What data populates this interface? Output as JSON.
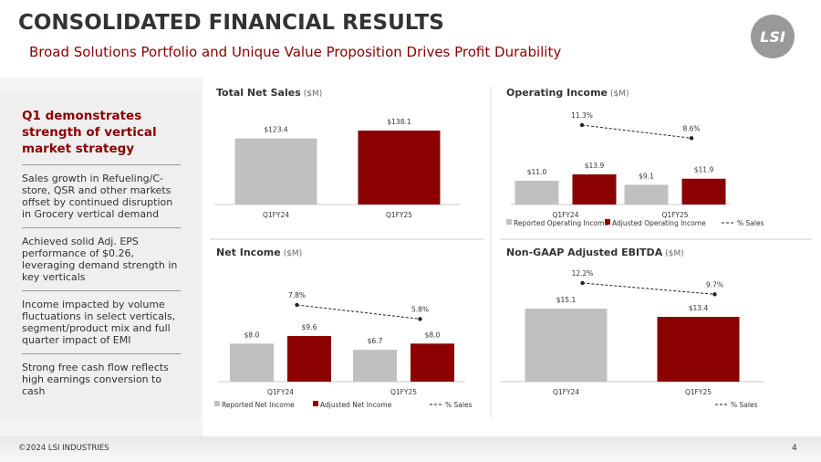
{
  "header": {
    "title": "CONSOLIDATED FINANCIAL RESULTS",
    "subtitle": "Broad Solutions Portfolio and Unique Value Proposition Drives Profit Durability",
    "logo": "LSI"
  },
  "sidebar": {
    "heading": "Q1 demonstrates strength of vertical market strategy",
    "bullets": [
      "Sales growth in Refueling/C-store, QSR and other markets offset by continued disruption in Grocery vertical demand",
      "Achieved solid Adj. EPS performance of $0.26, leveraging demand strength in key verticals",
      "Income impacted by volume fluctuations in select verticals, segment/product mix and full quarter impact of EMI",
      "Strong free cash flow reflects high earnings conversion to cash"
    ]
  },
  "footer": {
    "copyright": "©2024 LSI INDUSTRIES",
    "page": "4"
  },
  "chart_data": [
    {
      "type": "bar",
      "title": "Total Net Sales",
      "unit": "($M)",
      "categories": [
        "Q1FY24",
        "Q1FY25"
      ],
      "series": [
        {
          "colors": [
            "#c0c0c0",
            "#8b0000"
          ],
          "values": [
            123.4,
            138.1
          ],
          "value_labels": [
            "$123.4",
            "$138.1"
          ]
        }
      ]
    },
    {
      "type": "bar",
      "title": "Operating Income",
      "unit": "($M)",
      "categories": [
        "Q1FY24",
        "Q1FY25"
      ],
      "series": [
        {
          "name": "Reported Operating Income",
          "color": "#c0c0c0",
          "values": [
            11.0,
            9.1
          ],
          "value_labels": [
            "$11.0",
            "$9.1"
          ]
        },
        {
          "name": "Adjusted Operating Income",
          "color": "#8b0000",
          "values": [
            13.9,
            11.9
          ],
          "value_labels": [
            "$13.9",
            "$11.9"
          ]
        },
        {
          "name": "% Sales",
          "type": "line",
          "axis": "y2",
          "color": "#222222",
          "values": [
            11.3,
            8.6
          ],
          "value_labels": [
            "11.3%",
            "8.6%"
          ]
        }
      ]
    },
    {
      "type": "bar",
      "title": "Net Income",
      "unit": "($M)",
      "categories": [
        "Q1FY24",
        "Q1FY25"
      ],
      "series": [
        {
          "name": "Reported Net Income",
          "color": "#c0c0c0",
          "values": [
            8.0,
            6.7
          ],
          "value_labels": [
            "$8.0",
            "$6.7"
          ]
        },
        {
          "name": "Adjusted Net Income",
          "color": "#8b0000",
          "values": [
            9.6,
            8.0
          ],
          "value_labels": [
            "$9.6",
            "$8.0"
          ]
        },
        {
          "name": "% Sales",
          "type": "line",
          "axis": "y2",
          "color": "#222222",
          "values": [
            7.8,
            5.8
          ],
          "value_labels": [
            "7.8%",
            "5.8%"
          ]
        }
      ]
    },
    {
      "type": "bar",
      "title": "Non-GAAP Adjusted EBITDA",
      "unit": "($M)",
      "categories": [
        "Q1FY24",
        "Q1FY25"
      ],
      "series": [
        {
          "colors": [
            "#c0c0c0",
            "#8b0000"
          ],
          "values": [
            15.1,
            13.4
          ],
          "value_labels": [
            "$15.1",
            "$13.4"
          ]
        },
        {
          "name": "% Sales",
          "type": "line",
          "axis": "y2",
          "color": "#222222",
          "values": [
            12.2,
            9.7
          ],
          "value_labels": [
            "12.2%",
            "9.7%"
          ]
        }
      ]
    }
  ]
}
